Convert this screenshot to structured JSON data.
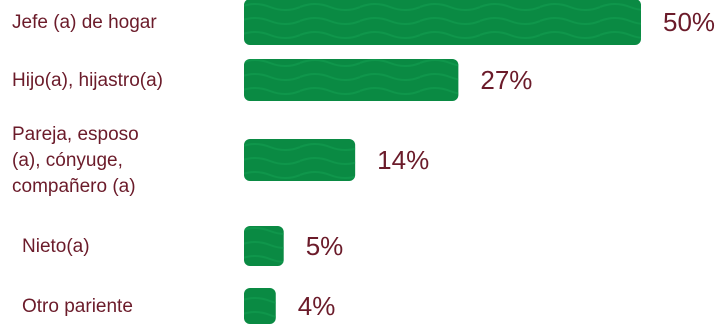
{
  "chart_data": {
    "type": "bar",
    "orientation": "horizontal",
    "categories": [
      "Jefe (a) de hogar",
      "Hijo(a), hijastro(a)",
      "Pareja, esposo (a), cónyuge, compañero (a)",
      "Nieto(a)",
      "Otro pariente"
    ],
    "category_lines": [
      [
        "Jefe (a) de hogar"
      ],
      [
        "Hijo(a), hijastro(a)"
      ],
      [
        "Pareja, esposo",
        "(a), cónyuge,",
        "compañero (a)"
      ],
      [
        "Nieto(a)"
      ],
      [
        "Otro pariente"
      ]
    ],
    "values": [
      50,
      27,
      14,
      5,
      4
    ],
    "value_labels": [
      "50%",
      "27%",
      "14%",
      "5%",
      "4%"
    ],
    "unit": "%",
    "xlim": [
      0,
      50
    ],
    "grid": false,
    "legend": "none",
    "bar_color": "#0a8a43",
    "text_color": "#6b1b2a"
  }
}
